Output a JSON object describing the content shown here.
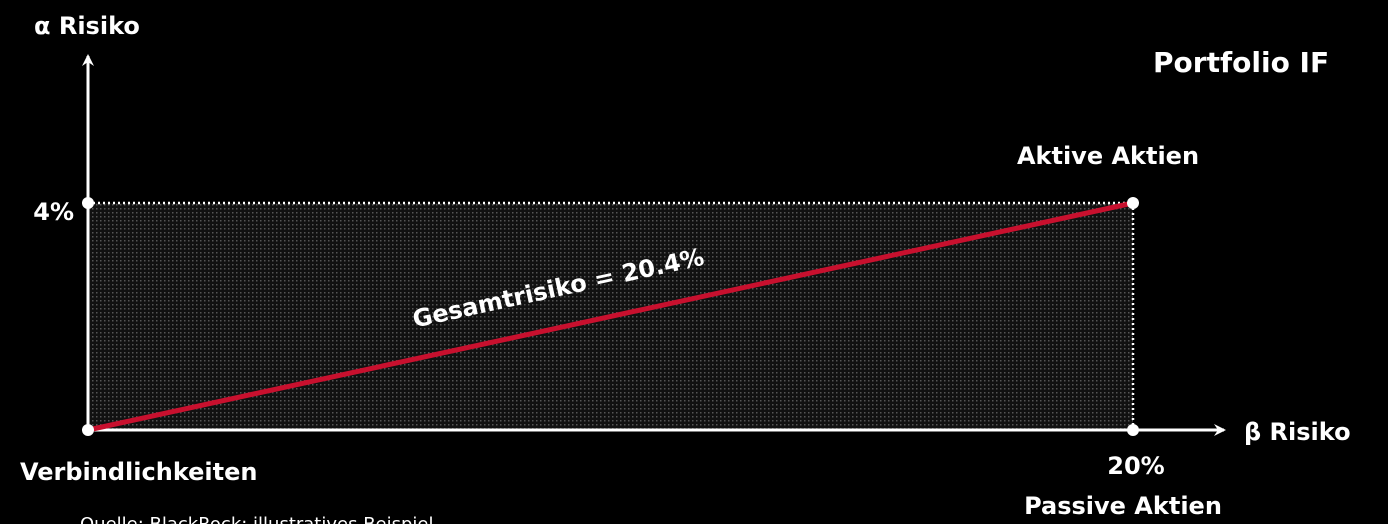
{
  "title": "Portfolio IF",
  "axes": {
    "y_label": "α Risiko",
    "x_label": "β Risiko",
    "y_tick": "4%",
    "x_tick": "20%"
  },
  "points": {
    "origin": "Verbindlichkeiten",
    "top_right": "Aktive Aktien",
    "bottom_right": "Passive Aktien"
  },
  "line_label": "Gesamtrisiko = 20.4%",
  "source": "Quelle: BlackRock; illustratives Beispiel"
}
